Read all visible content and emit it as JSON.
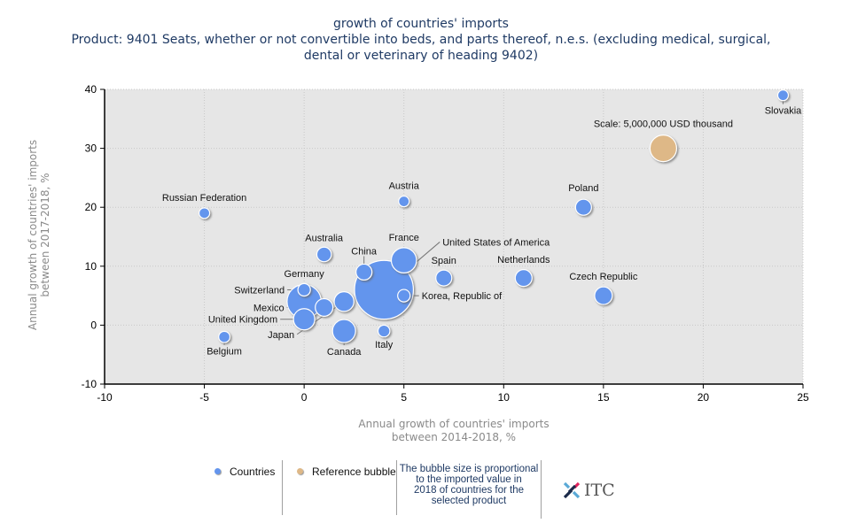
{
  "title": {
    "line1": "growth of countries' imports",
    "line2": "Product: 9401 Seats, whether or not convertible into beds, and parts thereof, n.e.s. (excluding medical, surgical,",
    "line3": "dental or veterinary of heading 9402)"
  },
  "legend": {
    "countries_label": "Countries",
    "reference_label": "Reference bubble",
    "note": "The bubble size is proportional to the imported value in 2018 of countries for the selected product",
    "note_lines": [
      "The bubble size is proportional",
      "to the imported value in",
      "2018 of countries for the",
      "selected product"
    ],
    "logo_text": "ITC"
  },
  "colors": {
    "countries": "#6495ED",
    "reference": "#DEB887",
    "plot_background": "#E6E6E6",
    "title": "#1F3A64",
    "axis_title": "#8A8A8A"
  },
  "chart_data": {
    "type": "scatter",
    "subtype": "bubble",
    "title": "growth of countries' imports",
    "subtitle": "Product: 9401 Seats, whether or not convertible into beds, and parts thereof, n.e.s. (excluding medical, surgical, dental or veterinary of heading 9402)",
    "xlabel": [
      "Annual growth of countries' imports",
      "between 2014-2018, %"
    ],
    "ylabel": [
      "Annual growth of countries' imports",
      "between 2017-2018, %"
    ],
    "xlim": [
      -10,
      25
    ],
    "ylim": [
      -10,
      40
    ],
    "xticks": [
      -10,
      -5,
      0,
      5,
      10,
      15,
      20,
      25
    ],
    "yticks": [
      -10,
      0,
      10,
      20,
      30,
      40
    ],
    "grid": true,
    "legend_position": "bottom",
    "size_note": "relative bubble size (reference = 5,000,000 USD thousand)",
    "reference": {
      "label": "Scale: 5,000,000 USD thousand",
      "x": 18,
      "y": 30,
      "size": 1.0
    },
    "series": [
      {
        "name": "Countries",
        "points": [
          {
            "label": "Slovakia",
            "x": 24,
            "y": 39,
            "size": 0.16
          },
          {
            "label": "Russian Federation",
            "x": -5,
            "y": 19,
            "size": 0.16
          },
          {
            "label": "Austria",
            "x": 5,
            "y": 21,
            "size": 0.16
          },
          {
            "label": "Poland",
            "x": 14,
            "y": 20,
            "size": 0.36
          },
          {
            "label": "Australia",
            "x": 1,
            "y": 12,
            "size": 0.3
          },
          {
            "label": "France",
            "x": 5,
            "y": 11,
            "size": 0.9
          },
          {
            "label": "China",
            "x": 3,
            "y": 9,
            "size": 0.36
          },
          {
            "label": "Spain",
            "x": 7,
            "y": 8,
            "size": 0.36
          },
          {
            "label": "Netherlands",
            "x": 11,
            "y": 8,
            "size": 0.4
          },
          {
            "label": "Germany",
            "x": 0,
            "y": 4,
            "size": 1.65
          },
          {
            "label": "United States of America",
            "x": 4,
            "y": 6,
            "size": 4.9
          },
          {
            "label": "Switzerland",
            "x": 0,
            "y": 6,
            "size": 0.22
          },
          {
            "label": "Korea, Republic of",
            "x": 5,
            "y": 5,
            "size": 0.22
          },
          {
            "label": "Czech Republic",
            "x": 15,
            "y": 5,
            "size": 0.44
          },
          {
            "label": "Mexico",
            "x": 1,
            "y": 3,
            "size": 0.44
          },
          {
            "label": "Japan",
            "x": 2,
            "y": 4,
            "size": 0.55
          },
          {
            "label": "United Kingdom",
            "x": 0,
            "y": 1,
            "size": 0.64
          },
          {
            "label": "Canada",
            "x": 2,
            "y": -1,
            "size": 0.75
          },
          {
            "label": "Italy",
            "x": 4,
            "y": -1,
            "size": 0.2
          },
          {
            "label": "Belgium",
            "x": -4,
            "y": -2,
            "size": 0.18
          }
        ]
      }
    ]
  }
}
